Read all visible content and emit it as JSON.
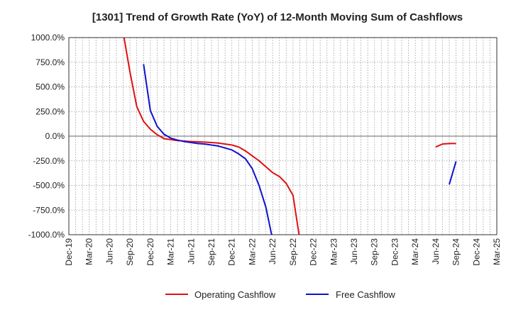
{
  "chart_data": {
    "type": "line",
    "title": "[1301]  Trend of Growth Rate (YoY) of 12-Month Moving Sum of Cashflows",
    "xlabel": "",
    "ylabel": "",
    "ylim": [
      -1000,
      1000
    ],
    "yticks": [
      1000,
      750,
      500,
      250,
      0,
      -250,
      -500,
      -750,
      -1000
    ],
    "ytick_labels": [
      "1000.0%",
      "750.0%",
      "500.0%",
      "250.0%",
      "0.0%",
      "-250.0%",
      "-500.0%",
      "-750.0%",
      "-1000.0%"
    ],
    "x_months": [
      "Dec-19",
      "Jan-20",
      "Feb-20",
      "Mar-20",
      "Apr-20",
      "May-20",
      "Jun-20",
      "Jul-20",
      "Aug-20",
      "Sep-20",
      "Oct-20",
      "Nov-20",
      "Dec-20",
      "Jan-21",
      "Feb-21",
      "Mar-21",
      "Apr-21",
      "May-21",
      "Jun-21",
      "Jul-21",
      "Aug-21",
      "Sep-21",
      "Oct-21",
      "Nov-21",
      "Dec-21",
      "Jan-22",
      "Feb-22",
      "Mar-22",
      "Apr-22",
      "May-22",
      "Jun-22",
      "Jul-22",
      "Aug-22",
      "Sep-22",
      "Oct-22",
      "Nov-22",
      "Dec-22",
      "Jan-23",
      "Feb-23",
      "Mar-23",
      "Apr-23",
      "May-23",
      "Jun-23",
      "Jul-23",
      "Aug-23",
      "Sep-23",
      "Oct-23",
      "Nov-23",
      "Dec-23",
      "Jan-24",
      "Feb-24",
      "Mar-24",
      "Apr-24",
      "May-24",
      "Jun-24",
      "Jul-24",
      "Aug-24",
      "Sep-24",
      "Oct-24",
      "Nov-24",
      "Dec-24",
      "Jan-25",
      "Feb-25",
      "Mar-25"
    ],
    "xtick_labels": [
      "Dec-19",
      "Mar-20",
      "Jun-20",
      "Sep-20",
      "Dec-20",
      "Mar-21",
      "Jun-21",
      "Sep-21",
      "Dec-21",
      "Mar-22",
      "Jun-22",
      "Sep-22",
      "Dec-22",
      "Mar-23",
      "Jun-23",
      "Sep-23",
      "Dec-23",
      "Mar-24",
      "Jun-24",
      "Sep-24",
      "Dec-24",
      "Mar-25"
    ],
    "grid": true,
    "legend_position": "bottom",
    "series": [
      {
        "name": "Operating Cashflow",
        "color": "#e01010",
        "points": [
          [
            "Aug-20",
            1050
          ],
          [
            "Sep-20",
            650
          ],
          [
            "Oct-20",
            300
          ],
          [
            "Nov-20",
            150
          ],
          [
            "Dec-20",
            70
          ],
          [
            "Jan-21",
            15
          ],
          [
            "Feb-21",
            -25
          ],
          [
            "Mar-21",
            -35
          ],
          [
            "Apr-21",
            -45
          ],
          [
            "May-21",
            -50
          ],
          [
            "Jun-21",
            -55
          ],
          [
            "Jul-21",
            -58
          ],
          [
            "Aug-21",
            -60
          ],
          [
            "Sep-21",
            -65
          ],
          [
            "Oct-21",
            -70
          ],
          [
            "Nov-21",
            -80
          ],
          [
            "Dec-21",
            -90
          ],
          [
            "Jan-22",
            -110
          ],
          [
            "Feb-22",
            -150
          ],
          [
            "Mar-22",
            -200
          ],
          [
            "Apr-22",
            -250
          ],
          [
            "May-22",
            -310
          ],
          [
            "Jun-22",
            -370
          ],
          [
            "Jul-22",
            -410
          ],
          [
            "Aug-22",
            -480
          ],
          [
            "Sep-22",
            -600
          ],
          [
            "Oct-22",
            -1050
          ]
        ],
        "points_2": [
          [
            "Jun-24",
            -110
          ],
          [
            "Jul-24",
            -80
          ],
          [
            "Aug-24",
            -75
          ],
          [
            "Sep-24",
            -75
          ]
        ]
      },
      {
        "name": "Free Cashflow",
        "color": "#1010d0",
        "points": [
          [
            "Nov-20",
            730
          ],
          [
            "Dec-20",
            260
          ],
          [
            "Jan-21",
            100
          ],
          [
            "Feb-21",
            20
          ],
          [
            "Mar-21",
            -20
          ],
          [
            "Apr-21",
            -40
          ],
          [
            "May-21",
            -55
          ],
          [
            "Jun-21",
            -65
          ],
          [
            "Jul-21",
            -75
          ],
          [
            "Aug-21",
            -80
          ],
          [
            "Sep-21",
            -90
          ],
          [
            "Oct-21",
            -100
          ],
          [
            "Nov-21",
            -120
          ],
          [
            "Dec-21",
            -140
          ],
          [
            "Jan-22",
            -180
          ],
          [
            "Feb-22",
            -230
          ],
          [
            "Mar-22",
            -330
          ],
          [
            "Apr-22",
            -500
          ],
          [
            "May-22",
            -720
          ],
          [
            "Jun-22",
            -1050
          ]
        ],
        "points_2": [
          [
            "Aug-24",
            -490
          ],
          [
            "Sep-24",
            -255
          ]
        ]
      }
    ]
  }
}
